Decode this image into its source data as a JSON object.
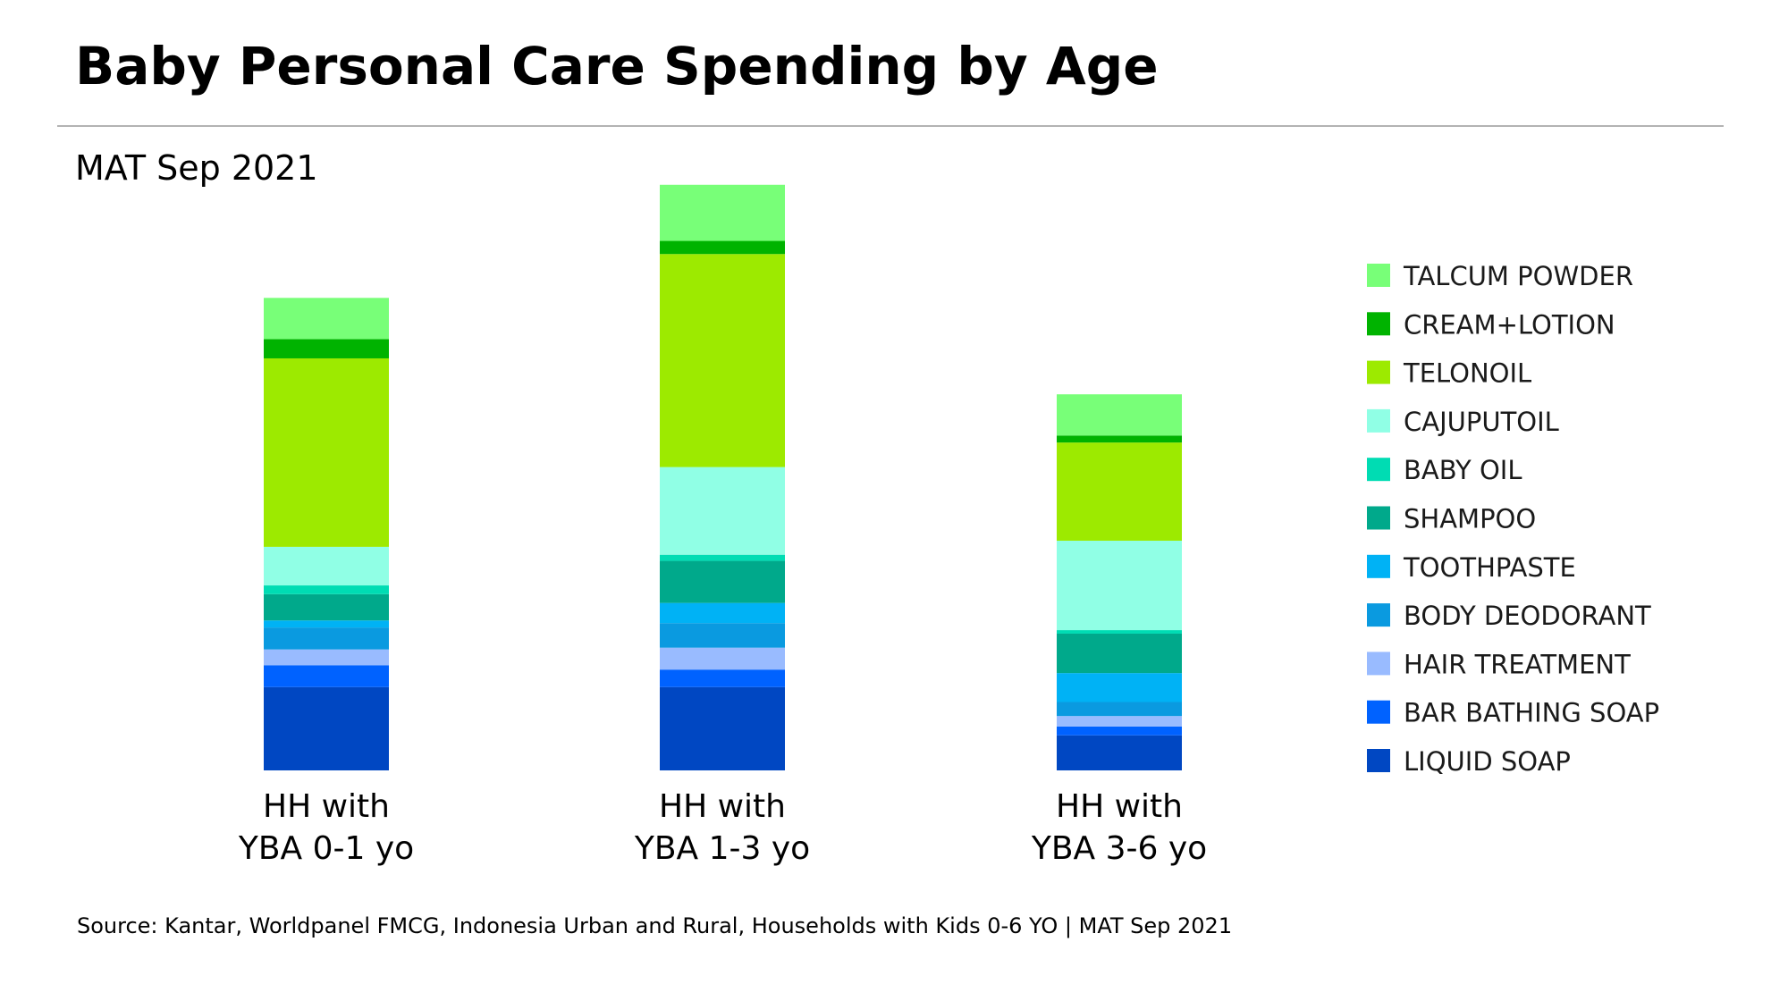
{
  "title": "Baby Personal Care Spending by Age",
  "subtitle": "MAT Sep 2021",
  "source": "Source: Kantar, Worldpanel FMCG, Indonesia Urban and Rural, Households with Kids 0-6 YO | MAT Sep 2021",
  "chart_data": {
    "type": "bar",
    "stacked": true,
    "categories": [
      [
        "HH with",
        "YBA 0-1 yo"
      ],
      [
        "HH with",
        "YBA 1-3 yo"
      ],
      [
        "HH with",
        "YBA 3-6 yo"
      ]
    ],
    "y_max": 680,
    "axes_visible": false,
    "grid": false,
    "legend_position": "right",
    "series": [
      {
        "name": "LIQUID SOAP",
        "color": "#0047c2",
        "values": [
          95,
          95,
          40
        ]
      },
      {
        "name": "BAR BATHING SOAP",
        "color": "#0062ff",
        "values": [
          25,
          20,
          10
        ]
      },
      {
        "name": "HAIR TREATMENT",
        "color": "#99bbff",
        "values": [
          18,
          25,
          12
        ]
      },
      {
        "name": "BODY DEODORANT",
        "color": "#0a9ae0",
        "values": [
          25,
          28,
          16
        ]
      },
      {
        "name": "TOOTHPASTE",
        "color": "#00b2f5",
        "values": [
          8,
          23,
          33
        ]
      },
      {
        "name": "SHAMPOO",
        "color": "#00a98b",
        "values": [
          30,
          48,
          45
        ]
      },
      {
        "name": "BABY OIL",
        "color": "#00dcb3",
        "values": [
          10,
          7,
          4
        ]
      },
      {
        "name": "CAJUPUTOIL",
        "color": "#90ffe5",
        "values": [
          44,
          100,
          102
        ]
      },
      {
        "name": "TELONOIL",
        "color": "#9dea00",
        "values": [
          215,
          243,
          112
        ]
      },
      {
        "name": "CREAM+LOTION",
        "color": "#00b300",
        "values": [
          22,
          15,
          8
        ]
      },
      {
        "name": "TALCUM POWDER",
        "color": "#78ff78",
        "values": [
          47,
          64,
          47
        ]
      }
    ],
    "legend_order": [
      "TALCUM POWDER",
      "CREAM+LOTION",
      "TELONOIL",
      "CAJUPUTOIL",
      "BABY OIL",
      "SHAMPOO",
      "TOOTHPASTE",
      "BODY DEODORANT",
      "HAIR TREATMENT",
      "BAR BATHING SOAP",
      "LIQUID SOAP"
    ]
  }
}
